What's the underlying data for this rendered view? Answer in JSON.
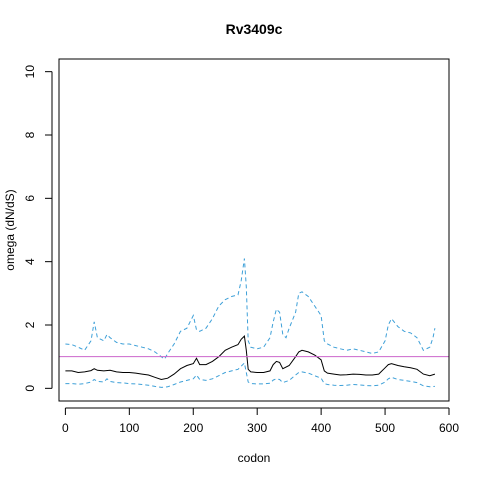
{
  "chart_data": {
    "type": "line",
    "title": "Rv3409c",
    "xlabel": "codon",
    "ylabel": "omega (dN/dS)",
    "xlim": [
      -10,
      600
    ],
    "ylim": [
      -0.4,
      10.4
    ],
    "xticks": [
      0,
      100,
      200,
      300,
      400,
      500,
      600
    ],
    "yticks": [
      0,
      2,
      4,
      6,
      8,
      10
    ],
    "grid": false,
    "reference_line": {
      "y": 1,
      "color": "#cc66cc"
    },
    "series": [
      {
        "style": "dashed",
        "color": "#3ea0d8",
        "points": [
          [
            0,
            1.4
          ],
          [
            10,
            1.38
          ],
          [
            20,
            1.3
          ],
          [
            30,
            1.2
          ],
          [
            40,
            1.5
          ],
          [
            45,
            2.1
          ],
          [
            50,
            1.6
          ],
          [
            60,
            1.5
          ],
          [
            65,
            1.7
          ],
          [
            70,
            1.6
          ],
          [
            80,
            1.45
          ],
          [
            90,
            1.4
          ],
          [
            100,
            1.4
          ],
          [
            110,
            1.35
          ],
          [
            120,
            1.3
          ],
          [
            130,
            1.25
          ],
          [
            140,
            1.15
          ],
          [
            150,
            1.0
          ],
          [
            155,
            0.92
          ],
          [
            160,
            1.1
          ],
          [
            170,
            1.4
          ],
          [
            180,
            1.8
          ],
          [
            190,
            1.9
          ],
          [
            195,
            2.1
          ],
          [
            200,
            2.3
          ],
          [
            205,
            1.85
          ],
          [
            210,
            1.8
          ],
          [
            220,
            1.9
          ],
          [
            230,
            2.2
          ],
          [
            240,
            2.6
          ],
          [
            250,
            2.8
          ],
          [
            260,
            2.9
          ],
          [
            270,
            2.95
          ],
          [
            275,
            3.4
          ],
          [
            280,
            4.1
          ],
          [
            283,
            3.2
          ],
          [
            286,
            1.5
          ],
          [
            290,
            1.3
          ],
          [
            300,
            1.25
          ],
          [
            310,
            1.3
          ],
          [
            320,
            1.6
          ],
          [
            325,
            2.1
          ],
          [
            330,
            2.5
          ],
          [
            335,
            2.4
          ],
          [
            340,
            1.7
          ],
          [
            345,
            1.6
          ],
          [
            350,
            1.9
          ],
          [
            360,
            2.4
          ],
          [
            365,
            3.0
          ],
          [
            370,
            3.05
          ],
          [
            380,
            2.9
          ],
          [
            390,
            2.6
          ],
          [
            400,
            2.3
          ],
          [
            405,
            1.5
          ],
          [
            410,
            1.4
          ],
          [
            420,
            1.3
          ],
          [
            430,
            1.25
          ],
          [
            440,
            1.2
          ],
          [
            450,
            1.25
          ],
          [
            460,
            1.2
          ],
          [
            470,
            1.15
          ],
          [
            480,
            1.1
          ],
          [
            490,
            1.15
          ],
          [
            500,
            1.5
          ],
          [
            505,
            2.0
          ],
          [
            510,
            2.2
          ],
          [
            520,
            1.95
          ],
          [
            530,
            1.8
          ],
          [
            540,
            1.75
          ],
          [
            550,
            1.6
          ],
          [
            560,
            1.2
          ],
          [
            570,
            1.3
          ],
          [
            575,
            1.6
          ],
          [
            578,
            1.9
          ]
        ]
      },
      {
        "style": "solid",
        "color": "#000000",
        "points": [
          [
            0,
            0.55
          ],
          [
            10,
            0.55
          ],
          [
            20,
            0.5
          ],
          [
            30,
            0.52
          ],
          [
            40,
            0.56
          ],
          [
            45,
            0.62
          ],
          [
            50,
            0.57
          ],
          [
            60,
            0.55
          ],
          [
            70,
            0.57
          ],
          [
            80,
            0.52
          ],
          [
            90,
            0.5
          ],
          [
            100,
            0.5
          ],
          [
            110,
            0.48
          ],
          [
            120,
            0.45
          ],
          [
            130,
            0.42
          ],
          [
            140,
            0.35
          ],
          [
            150,
            0.28
          ],
          [
            160,
            0.32
          ],
          [
            170,
            0.45
          ],
          [
            180,
            0.62
          ],
          [
            190,
            0.72
          ],
          [
            200,
            0.78
          ],
          [
            205,
            0.95
          ],
          [
            210,
            0.75
          ],
          [
            220,
            0.75
          ],
          [
            230,
            0.85
          ],
          [
            240,
            1.0
          ],
          [
            250,
            1.2
          ],
          [
            260,
            1.3
          ],
          [
            270,
            1.38
          ],
          [
            275,
            1.55
          ],
          [
            280,
            1.65
          ],
          [
            283,
            1.2
          ],
          [
            286,
            0.6
          ],
          [
            290,
            0.52
          ],
          [
            300,
            0.5
          ],
          [
            310,
            0.5
          ],
          [
            320,
            0.55
          ],
          [
            325,
            0.75
          ],
          [
            330,
            0.85
          ],
          [
            335,
            0.82
          ],
          [
            340,
            0.62
          ],
          [
            350,
            0.72
          ],
          [
            360,
            1.0
          ],
          [
            365,
            1.15
          ],
          [
            370,
            1.2
          ],
          [
            380,
            1.15
          ],
          [
            390,
            1.05
          ],
          [
            400,
            0.9
          ],
          [
            405,
            0.55
          ],
          [
            410,
            0.48
          ],
          [
            420,
            0.45
          ],
          [
            430,
            0.42
          ],
          [
            440,
            0.43
          ],
          [
            450,
            0.45
          ],
          [
            460,
            0.44
          ],
          [
            470,
            0.42
          ],
          [
            480,
            0.42
          ],
          [
            490,
            0.45
          ],
          [
            500,
            0.65
          ],
          [
            505,
            0.75
          ],
          [
            510,
            0.78
          ],
          [
            520,
            0.72
          ],
          [
            530,
            0.68
          ],
          [
            540,
            0.65
          ],
          [
            550,
            0.6
          ],
          [
            560,
            0.45
          ],
          [
            570,
            0.4
          ],
          [
            578,
            0.45
          ]
        ]
      },
      {
        "style": "dashed",
        "color": "#3ea0d8",
        "points": [
          [
            0,
            0.15
          ],
          [
            10,
            0.15
          ],
          [
            20,
            0.13
          ],
          [
            30,
            0.15
          ],
          [
            40,
            0.2
          ],
          [
            45,
            0.28
          ],
          [
            50,
            0.22
          ],
          [
            60,
            0.2
          ],
          [
            65,
            0.3
          ],
          [
            70,
            0.22
          ],
          [
            80,
            0.18
          ],
          [
            90,
            0.17
          ],
          [
            100,
            0.15
          ],
          [
            110,
            0.14
          ],
          [
            120,
            0.12
          ],
          [
            130,
            0.1
          ],
          [
            140,
            0.06
          ],
          [
            150,
            0.03
          ],
          [
            160,
            0.05
          ],
          [
            170,
            0.12
          ],
          [
            180,
            0.2
          ],
          [
            190,
            0.25
          ],
          [
            200,
            0.3
          ],
          [
            205,
            0.42
          ],
          [
            210,
            0.28
          ],
          [
            220,
            0.25
          ],
          [
            230,
            0.3
          ],
          [
            240,
            0.4
          ],
          [
            250,
            0.5
          ],
          [
            260,
            0.55
          ],
          [
            270,
            0.6
          ],
          [
            275,
            0.7
          ],
          [
            280,
            0.8
          ],
          [
            283,
            0.5
          ],
          [
            286,
            0.2
          ],
          [
            290,
            0.15
          ],
          [
            300,
            0.14
          ],
          [
            310,
            0.14
          ],
          [
            320,
            0.16
          ],
          [
            325,
            0.26
          ],
          [
            330,
            0.3
          ],
          [
            335,
            0.28
          ],
          [
            340,
            0.18
          ],
          [
            350,
            0.25
          ],
          [
            360,
            0.42
          ],
          [
            365,
            0.5
          ],
          [
            370,
            0.52
          ],
          [
            380,
            0.48
          ],
          [
            390,
            0.4
          ],
          [
            400,
            0.32
          ],
          [
            405,
            0.15
          ],
          [
            410,
            0.12
          ],
          [
            420,
            0.1
          ],
          [
            430,
            0.09
          ],
          [
            440,
            0.1
          ],
          [
            450,
            0.12
          ],
          [
            460,
            0.11
          ],
          [
            470,
            0.09
          ],
          [
            480,
            0.08
          ],
          [
            490,
            0.1
          ],
          [
            500,
            0.2
          ],
          [
            505,
            0.3
          ],
          [
            510,
            0.35
          ],
          [
            520,
            0.28
          ],
          [
            530,
            0.25
          ],
          [
            540,
            0.22
          ],
          [
            550,
            0.18
          ],
          [
            560,
            0.08
          ],
          [
            570,
            0.05
          ],
          [
            578,
            0.06
          ]
        ]
      }
    ]
  }
}
